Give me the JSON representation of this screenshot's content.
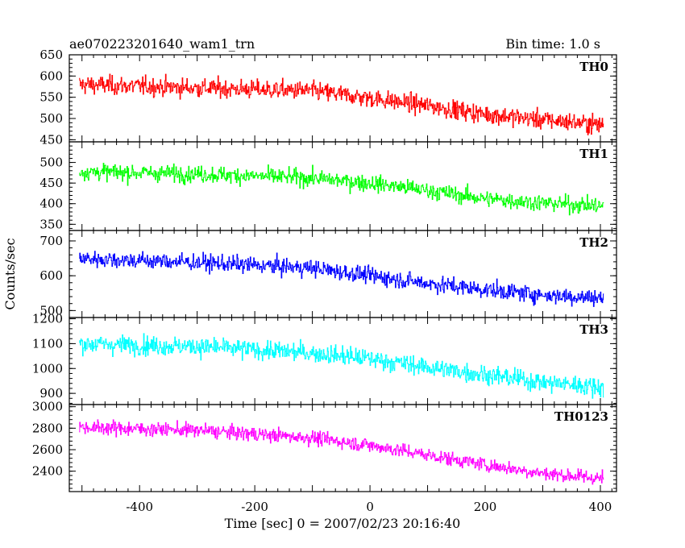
{
  "header": {
    "left": "ae070223201640_wam1_trn",
    "right": "Bin time: 1.0 s"
  },
  "chart_data": {
    "type": "line",
    "xlabel": "Time [sec] 0 = 2007/02/23 20:16:40",
    "ylabel": "Counts/sec",
    "xlim": [
      -522,
      428
    ],
    "x_ticks": [
      -400,
      -200,
      0,
      200,
      400
    ],
    "x_range": [
      -505,
      405
    ],
    "bin_time_s": 1.0,
    "panels": [
      {
        "name": "TH0",
        "color": "#ff0000",
        "ylim": [
          445,
          650
        ],
        "ticks": [
          450,
          500,
          550,
          600,
          650
        ],
        "trend": [
          {
            "x": -505,
            "y": 580
          },
          {
            "x": -300,
            "y": 572
          },
          {
            "x": -100,
            "y": 565
          },
          {
            "x": 0,
            "y": 548
          },
          {
            "x": 100,
            "y": 530
          },
          {
            "x": 200,
            "y": 510
          },
          {
            "x": 300,
            "y": 497
          },
          {
            "x": 405,
            "y": 485
          }
        ],
        "noise": 22
      },
      {
        "name": "TH1",
        "color": "#00ff00",
        "ylim": [
          335,
          550
        ],
        "ticks": [
          350,
          400,
          450,
          500
        ],
        "trend": [
          {
            "x": -505,
            "y": 478
          },
          {
            "x": -300,
            "y": 472
          },
          {
            "x": -100,
            "y": 462
          },
          {
            "x": 0,
            "y": 450
          },
          {
            "x": 100,
            "y": 432
          },
          {
            "x": 200,
            "y": 412
          },
          {
            "x": 300,
            "y": 402
          },
          {
            "x": 405,
            "y": 394
          }
        ],
        "noise": 20
      },
      {
        "name": "TH2",
        "color": "#0000ff",
        "ylim": [
          480,
          730
        ],
        "ticks": [
          500,
          600,
          700
        ],
        "trend": [
          {
            "x": -505,
            "y": 650
          },
          {
            "x": -300,
            "y": 638
          },
          {
            "x": -100,
            "y": 622
          },
          {
            "x": 0,
            "y": 600
          },
          {
            "x": 100,
            "y": 578
          },
          {
            "x": 200,
            "y": 560
          },
          {
            "x": 300,
            "y": 545
          },
          {
            "x": 405,
            "y": 535
          }
        ],
        "noise": 24
      },
      {
        "name": "TH3",
        "color": "#00ffff",
        "ylim": [
          855,
          1205
        ],
        "ticks": [
          900,
          1000,
          1100,
          1200
        ],
        "trend": [
          {
            "x": -505,
            "y": 1100
          },
          {
            "x": -300,
            "y": 1088
          },
          {
            "x": -100,
            "y": 1062
          },
          {
            "x": 0,
            "y": 1040
          },
          {
            "x": 100,
            "y": 1005
          },
          {
            "x": 200,
            "y": 975
          },
          {
            "x": 300,
            "y": 945
          },
          {
            "x": 405,
            "y": 925
          }
        ],
        "noise": 38
      },
      {
        "name": "TH0123",
        "color": "#ff00ff",
        "ylim": [
          2210,
          3020
        ],
        "ticks": [
          2400,
          2600,
          2800,
          3000
        ],
        "trend": [
          {
            "x": -505,
            "y": 2810
          },
          {
            "x": -300,
            "y": 2780
          },
          {
            "x": -100,
            "y": 2710
          },
          {
            "x": 0,
            "y": 2640
          },
          {
            "x": 100,
            "y": 2550
          },
          {
            "x": 200,
            "y": 2460
          },
          {
            "x": 300,
            "y": 2380
          },
          {
            "x": 405,
            "y": 2330
          }
        ],
        "noise": 65
      }
    ]
  }
}
